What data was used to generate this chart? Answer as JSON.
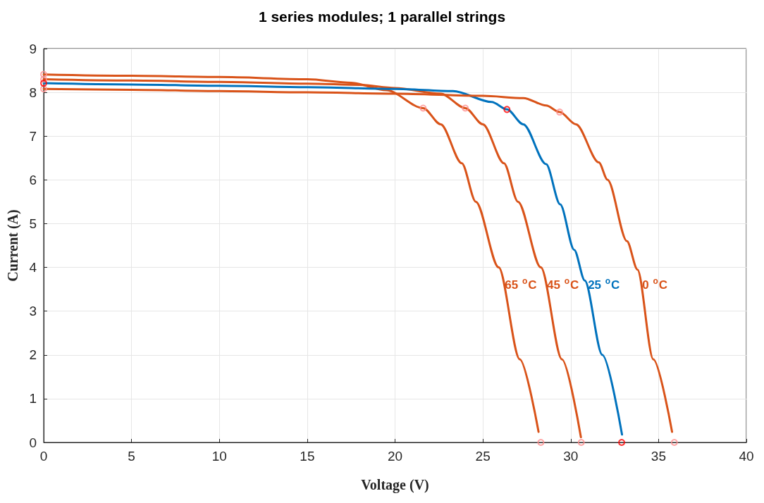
{
  "chart_data": {
    "type": "line",
    "title": "1 series modules; 1 parallel strings",
    "xlabel": "Voltage (V)",
    "ylabel": "Current (A)",
    "xlim": [
      0,
      40
    ],
    "xticks": [
      0,
      5,
      10,
      15,
      20,
      25,
      30,
      35,
      40
    ],
    "ylim": [
      0,
      9
    ],
    "yticks": [
      0,
      1,
      2,
      3,
      4,
      5,
      6,
      7,
      8,
      9
    ],
    "grid": true,
    "legend": false,
    "marker": "none",
    "line_style": "solid",
    "series": [
      {
        "name": "65 $^{o}$C",
        "color": "#d95319",
        "x": [
          0,
          5,
          10,
          15,
          17.5,
          19.5,
          21.6,
          22.6,
          23.8,
          24.6,
          25.9,
          27.1,
          28.17
        ],
        "values": [
          8.41,
          8.38,
          8.35,
          8.3,
          8.22,
          8.05,
          7.64,
          7.27,
          6.38,
          5.5,
          4.0,
          1.9,
          0.24
        ]
      },
      {
        "name": "45 $^{o}$C",
        "color": "#d95319",
        "x": [
          0,
          5,
          10,
          15,
          18,
          20,
          22.6,
          24.0,
          25.0,
          26.2,
          27.0,
          28.3,
          29.5,
          30.58
        ],
        "values": [
          8.3,
          8.27,
          8.24,
          8.2,
          8.17,
          8.1,
          7.97,
          7.64,
          7.27,
          6.38,
          5.5,
          4.0,
          1.9,
          0.12
        ]
      },
      {
        "name": "25 $^{o}$C",
        "color": "#0072bd",
        "x": [
          0,
          5,
          10,
          15,
          20,
          23.3,
          25.5,
          26.37,
          27.3,
          28.6,
          29.4,
          30.2,
          30.8,
          31.8,
          32.92
        ],
        "values": [
          8.21,
          8.18,
          8.15,
          8.12,
          8.08,
          8.03,
          7.78,
          7.61,
          7.27,
          6.36,
          5.44,
          4.4,
          3.7,
          2.0,
          0.18
        ]
      },
      {
        "name": "0 $^{o}$C",
        "color": "#d95319",
        "x": [
          0,
          5,
          10,
          15,
          20,
          25,
          27.3,
          28.6,
          29.37,
          30.3,
          31.6,
          32.1,
          33.2,
          33.8,
          34.7,
          35.77
        ],
        "values": [
          8.08,
          8.06,
          8.03,
          8.0,
          7.97,
          7.92,
          7.87,
          7.7,
          7.55,
          7.27,
          6.4,
          6.0,
          4.6,
          3.95,
          1.9,
          0.24
        ]
      },
      {
        "type": "scatter",
        "marker": "circle",
        "color": "#ff9090",
        "x": [
          0,
          0,
          0,
          21.6,
          24.0,
          29.37,
          28.3,
          30.6,
          35.9
        ],
        "values": [
          8.41,
          8.3,
          8.08,
          7.64,
          7.64,
          7.55,
          0,
          0,
          0
        ]
      },
      {
        "type": "scatter",
        "marker": "circle",
        "color": "#ff0000",
        "x": [
          0,
          26.37,
          32.9
        ],
        "values": [
          8.21,
          7.61,
          0
        ]
      }
    ]
  }
}
